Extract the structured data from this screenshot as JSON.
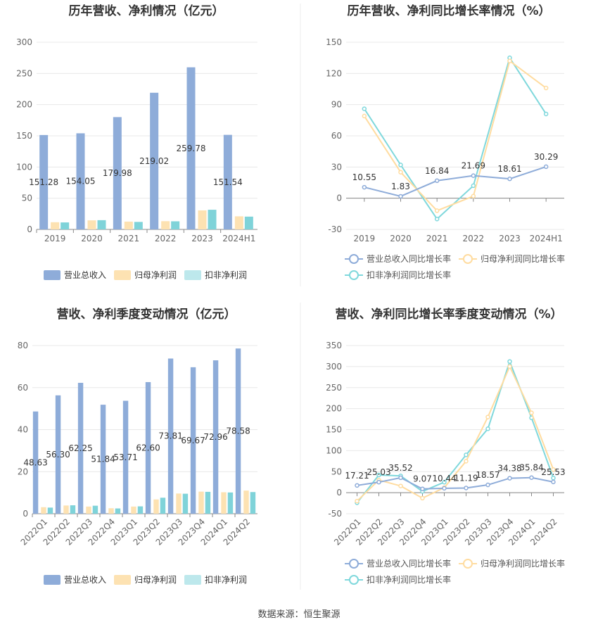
{
  "source_label": "数据来源：恒生聚源",
  "colors": {
    "revenue": "#8eacd9",
    "net_profit": "#fde2b2",
    "deducted_profit": "#7fd3d9",
    "deducted_profit_legend": "#bde8ec",
    "line_revenue": "#8eacd9",
    "line_net": "#ffdca0",
    "line_deducted": "#7fd8dc",
    "grid": "#e8e8e8",
    "axis": "#888888",
    "text": "#333333",
    "title": "#333333"
  },
  "chart_data": [
    {
      "id": "annual-bar",
      "type": "bar",
      "title": "历年营收、净利情况（亿元）",
      "categories": [
        "2019",
        "2020",
        "2021",
        "2022",
        "2023",
        "2024H1"
      ],
      "ylim": [
        0,
        300
      ],
      "yticks": [
        0,
        50,
        100,
        150,
        200,
        250,
        300
      ],
      "series": [
        {
          "name": "营业总收入",
          "values": [
            151.28,
            154.05,
            179.98,
            219.02,
            259.78,
            151.54
          ],
          "labels": [
            "151.28",
            "154.05",
            "179.98",
            "219.02",
            "259.78",
            "151.54"
          ]
        },
        {
          "name": "归母净利润",
          "values": [
            11.5,
            14.5,
            12.5,
            13.2,
            30.5,
            21.0
          ]
        },
        {
          "name": "扣非净利润",
          "values": [
            11.2,
            14.8,
            12.0,
            13.0,
            31.5,
            20.5
          ]
        }
      ]
    },
    {
      "id": "annual-line",
      "type": "line",
      "title": "历年营收、净利同比增长率情况（%）",
      "categories": [
        "2019",
        "2020",
        "2021",
        "2022",
        "2023",
        "2024H1"
      ],
      "ylim": [
        -30,
        150
      ],
      "yticks": [
        -30,
        0,
        30,
        60,
        90,
        120,
        150
      ],
      "series": [
        {
          "name": "营业总收入同比增长率",
          "values": [
            10.55,
            1.83,
            16.84,
            21.69,
            18.61,
            30.29
          ],
          "labels": [
            "10.55",
            "1.83",
            "16.84",
            "21.69",
            "18.61",
            "30.29"
          ]
        },
        {
          "name": "归母净利润同比增长率",
          "values": [
            79,
            25,
            -12,
            2,
            132,
            106
          ]
        },
        {
          "name": "扣非净利润同比增长率",
          "values": [
            86,
            32,
            -20,
            12,
            135,
            81
          ]
        }
      ]
    },
    {
      "id": "quarter-bar",
      "type": "bar",
      "title": "营收、净利季度变动情况（亿元）",
      "categories": [
        "2022Q1",
        "2022Q2",
        "2022Q3",
        "2022Q4",
        "2023Q1",
        "2023Q2",
        "2023Q3",
        "2023Q4",
        "2024Q1",
        "2024Q2"
      ],
      "ylim": [
        0,
        80
      ],
      "yticks": [
        0,
        20,
        40,
        60,
        80
      ],
      "series": [
        {
          "name": "营业总收入",
          "values": [
            48.63,
            56.3,
            62.25,
            51.84,
            53.71,
            62.6,
            73.81,
            69.67,
            72.96,
            78.58
          ],
          "labels": [
            "48.63",
            "56.30",
            "62.25",
            "51.84",
            "53.71",
            "62.60",
            "73.81",
            "69.67",
            "72.96",
            "78.58"
          ]
        },
        {
          "name": "归母净利润",
          "values": [
            3.1,
            3.9,
            3.4,
            2.6,
            3.4,
            6.8,
            9.6,
            10.5,
            10.2,
            11.0
          ]
        },
        {
          "name": "扣非净利润",
          "values": [
            2.9,
            4.0,
            3.8,
            2.5,
            3.5,
            7.6,
            9.5,
            10.4,
            10.1,
            10.3
          ]
        }
      ]
    },
    {
      "id": "quarter-line",
      "type": "line",
      "title": "营收、净利同比增长率季度变动情况（%）",
      "categories": [
        "2022Q1",
        "2022Q2",
        "2022Q3",
        "2022Q4",
        "2023Q1",
        "2023Q2",
        "2023Q3",
        "2023Q4",
        "2024Q1",
        "2024Q2"
      ],
      "ylim": [
        -50,
        350
      ],
      "yticks": [
        -50,
        0,
        50,
        100,
        150,
        200,
        250,
        300,
        350
      ],
      "series": [
        {
          "name": "营业总收入同比增长率",
          "values": [
            17.21,
            25.03,
            35.52,
            9.07,
            10.44,
            11.19,
            18.57,
            34.38,
            35.84,
            25.53
          ],
          "labels": [
            "17.21",
            "25.03",
            "35.52",
            "9.07",
            "10.44",
            "11.19",
            "18.57",
            "34.38",
            "35.84",
            "25.53"
          ]
        },
        {
          "name": "归母净利润同比增长率",
          "values": [
            -20,
            30,
            16,
            -13,
            12,
            75,
            180,
            300,
            190,
            55
          ]
        },
        {
          "name": "扣非净利润同比增长率",
          "values": [
            -24,
            42,
            40,
            3,
            25,
            90,
            152,
            312,
            178,
            35
          ]
        }
      ]
    }
  ]
}
